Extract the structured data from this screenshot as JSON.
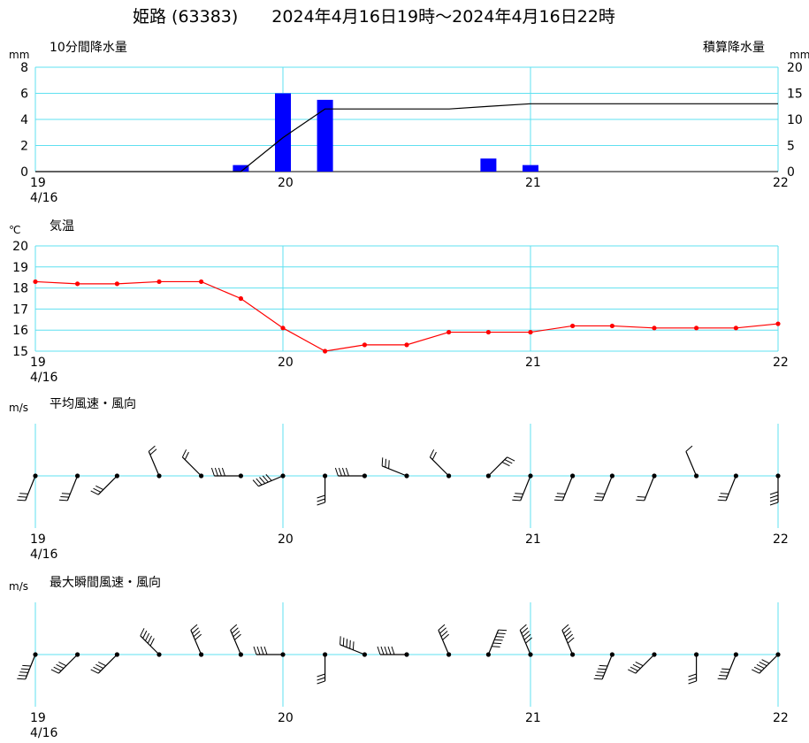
{
  "header": {
    "title": "姫路 (63383)　　2024年4月16日19時～2024年4月16日22時"
  },
  "x_axis": {
    "ticks": [
      "19",
      "20",
      "21",
      "22"
    ],
    "date_label": "4/16"
  },
  "chart_data": [
    {
      "type": "bar",
      "title": "10分間降水量",
      "unit_left": "mm",
      "unit_right": "mm",
      "right_axis_title": "積算降水量",
      "ylim": [
        0,
        8
      ],
      "yticks": [
        0,
        2,
        4,
        6,
        8
      ],
      "ylim_right": [
        0,
        20
      ],
      "yticks_right": [
        0,
        5,
        10,
        15,
        20
      ],
      "grid": true,
      "series": [
        {
          "kind": "bar",
          "color": "#0000ff",
          "points": [
            [
              19.83,
              0.5
            ],
            [
              20.0,
              6.0
            ],
            [
              20.17,
              5.5
            ],
            [
              20.83,
              1.0
            ],
            [
              21.0,
              0.5
            ]
          ]
        },
        {
          "kind": "line",
          "axis": "right",
          "color": "#000000",
          "points": [
            [
              19.0,
              0
            ],
            [
              19.83,
              0
            ],
            [
              20.0,
              6.5
            ],
            [
              20.17,
              12.0
            ],
            [
              20.67,
              12.0
            ],
            [
              20.83,
              12.5
            ],
            [
              21.0,
              13.0
            ],
            [
              22.0,
              13.0
            ]
          ]
        }
      ]
    },
    {
      "type": "line",
      "title": "気温",
      "unit_left": "℃",
      "ylim": [
        15,
        20
      ],
      "yticks": [
        15,
        16,
        17,
        18,
        19,
        20
      ],
      "grid": true,
      "series": [
        {
          "color": "#ff0000",
          "x": [
            19.0,
            19.17,
            19.33,
            19.5,
            19.67,
            19.83,
            20.0,
            20.17,
            20.33,
            20.5,
            20.67,
            20.83,
            21.0,
            21.17,
            21.33,
            21.5,
            21.67,
            21.83,
            22.0
          ],
          "y": [
            18.3,
            18.2,
            18.2,
            18.3,
            18.3,
            17.5,
            16.1,
            15.0,
            15.3,
            15.3,
            15.9,
            15.9,
            15.9,
            16.2,
            16.2,
            16.1,
            16.1,
            16.1,
            16.3
          ]
        }
      ]
    },
    {
      "type": "wind_barbs",
      "title": "平均風速・風向",
      "unit_left": "m/s",
      "grid": true,
      "x": [
        19.0,
        19.17,
        19.33,
        19.5,
        19.67,
        19.83,
        20.0,
        20.17,
        20.33,
        20.5,
        20.67,
        20.83,
        21.0,
        21.17,
        21.33,
        21.5,
        21.67,
        21.83,
        22.0
      ],
      "direction_deg": [
        202,
        202,
        225,
        337,
        315,
        270,
        247,
        180,
        270,
        292,
        315,
        45,
        202,
        202,
        202,
        202,
        337,
        202,
        180
      ],
      "speed_ms": [
        3,
        3,
        3,
        2,
        2,
        4,
        5,
        3,
        4,
        3,
        2,
        3,
        3,
        3,
        3,
        2,
        1,
        3,
        4
      ]
    },
    {
      "type": "wind_barbs",
      "title": "最大瞬間風速・風向",
      "unit_left": "m/s",
      "grid": true,
      "x": [
        19.0,
        19.17,
        19.33,
        19.5,
        19.67,
        19.83,
        20.0,
        20.17,
        20.33,
        20.5,
        20.67,
        20.83,
        21.0,
        21.17,
        21.33,
        21.5,
        21.67,
        21.83,
        22.0
      ],
      "direction_deg": [
        202,
        225,
        225,
        315,
        337,
        337,
        270,
        180,
        292,
        270,
        337,
        22,
        337,
        337,
        202,
        225,
        180,
        202,
        225
      ],
      "speed_ms": [
        5,
        4,
        4,
        5,
        4,
        4,
        4,
        3,
        5,
        5,
        4,
        6,
        5,
        5,
        5,
        4,
        3,
        4,
        5
      ]
    }
  ]
}
